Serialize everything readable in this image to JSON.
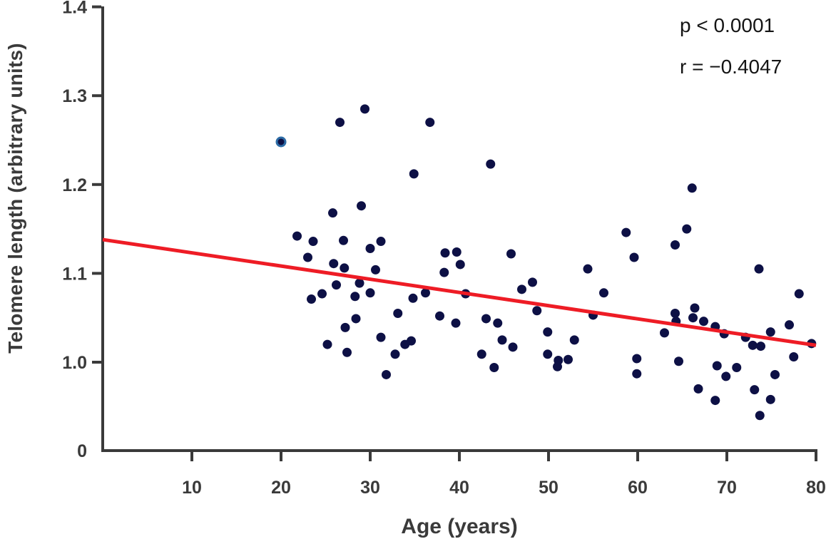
{
  "annotations": {
    "p_value": "p < 0.0001",
    "r_value": "r = −0.4047"
  },
  "colors": {
    "dot": "#0d1045",
    "highlight_ring": "#2d6ca6",
    "trend_line": "#ee1c25",
    "axis": "#3a3a3a",
    "tick_label": "#3a3a3a",
    "background": "#ffffff"
  },
  "chart_data": {
    "type": "scatter",
    "title": "",
    "xlabel": "Age (years)",
    "ylabel": "Telomere length (arbitrary units)",
    "xlim": [
      0,
      80
    ],
    "ylim": [
      1.0,
      1.4
    ],
    "y_axis_break": true,
    "grid": false,
    "legend": "none",
    "x_ticks": [
      10,
      20,
      30,
      40,
      50,
      60,
      70,
      80
    ],
    "y_ticks": [
      {
        "value": 0,
        "label": "0"
      },
      {
        "value": 1.0,
        "label": "1.0"
      },
      {
        "value": 1.1,
        "label": "1.1"
      },
      {
        "value": 1.2,
        "label": "1.2"
      },
      {
        "value": 1.3,
        "label": "1.3"
      },
      {
        "value": 1.4,
        "label": "1.4"
      }
    ],
    "trend_line": {
      "x0": 0,
      "y0": 1.138,
      "x1": 80,
      "y1": 1.019
    },
    "highlighted_point": {
      "x": 20.0,
      "y": 1.248
    },
    "points": [
      [
        29.4,
        1.285
      ],
      [
        26.6,
        1.27
      ],
      [
        36.7,
        1.27
      ],
      [
        34.9,
        1.212
      ],
      [
        43.5,
        1.223
      ],
      [
        29.0,
        1.176
      ],
      [
        25.8,
        1.168
      ],
      [
        21.8,
        1.142
      ],
      [
        23.6,
        1.136
      ],
      [
        27.0,
        1.137
      ],
      [
        31.2,
        1.136
      ],
      [
        30.0,
        1.128
      ],
      [
        23.0,
        1.118
      ],
      [
        38.4,
        1.123
      ],
      [
        39.7,
        1.124
      ],
      [
        25.9,
        1.111
      ],
      [
        27.1,
        1.106
      ],
      [
        30.6,
        1.104
      ],
      [
        38.3,
        1.101
      ],
      [
        40.1,
        1.11
      ],
      [
        45.8,
        1.122
      ],
      [
        58.7,
        1.146
      ],
      [
        59.6,
        1.118
      ],
      [
        66.1,
        1.196
      ],
      [
        65.5,
        1.15
      ],
      [
        64.2,
        1.132
      ],
      [
        26.2,
        1.087
      ],
      [
        28.8,
        1.089
      ],
      [
        24.6,
        1.077
      ],
      [
        23.4,
        1.071
      ],
      [
        28.3,
        1.074
      ],
      [
        30.0,
        1.078
      ],
      [
        34.8,
        1.072
      ],
      [
        36.2,
        1.078
      ],
      [
        37.8,
        1.052
      ],
      [
        33.1,
        1.055
      ],
      [
        28.4,
        1.049
      ],
      [
        27.2,
        1.039
      ],
      [
        31.2,
        1.028
      ],
      [
        34.6,
        1.024
      ],
      [
        33.9,
        1.02
      ],
      [
        25.2,
        1.02
      ],
      [
        27.4,
        1.011
      ],
      [
        32.8,
        1.009
      ],
      [
        31.8,
        0.986
      ],
      [
        39.6,
        1.044
      ],
      [
        54.4,
        1.105
      ],
      [
        48.2,
        1.09
      ],
      [
        47.0,
        1.082
      ],
      [
        40.7,
        1.077
      ],
      [
        56.2,
        1.078
      ],
      [
        48.7,
        1.058
      ],
      [
        55.0,
        1.053
      ],
      [
        43.0,
        1.049
      ],
      [
        44.3,
        1.044
      ],
      [
        49.9,
        1.034
      ],
      [
        52.9,
        1.025
      ],
      [
        44.8,
        1.025
      ],
      [
        46.0,
        1.017
      ],
      [
        42.5,
        1.009
      ],
      [
        49.9,
        1.009
      ],
      [
        51.1,
        1.002
      ],
      [
        52.2,
        1.003
      ],
      [
        51.0,
        0.995
      ],
      [
        43.9,
        0.994
      ],
      [
        59.9,
        1.004
      ],
      [
        59.9,
        0.987
      ],
      [
        73.6,
        1.105
      ],
      [
        78.1,
        1.077
      ],
      [
        66.4,
        1.061
      ],
      [
        64.2,
        1.055
      ],
      [
        66.2,
        1.05
      ],
      [
        64.3,
        1.046
      ],
      [
        67.4,
        1.046
      ],
      [
        63.0,
        1.033
      ],
      [
        68.7,
        1.04
      ],
      [
        69.7,
        1.032
      ],
      [
        74.9,
        1.034
      ],
      [
        77.0,
        1.042
      ],
      [
        72.1,
        1.028
      ],
      [
        72.9,
        1.019
      ],
      [
        73.8,
        1.018
      ],
      [
        79.5,
        1.021
      ],
      [
        77.5,
        1.006
      ],
      [
        64.6,
        1.001
      ],
      [
        68.9,
        0.996
      ],
      [
        71.1,
        0.994
      ],
      [
        69.9,
        0.984
      ],
      [
        75.4,
        0.986
      ],
      [
        66.8,
        0.97
      ],
      [
        73.1,
        0.969
      ],
      [
        68.7,
        0.957
      ],
      [
        74.9,
        0.958
      ],
      [
        73.7,
        0.94
      ]
    ]
  }
}
